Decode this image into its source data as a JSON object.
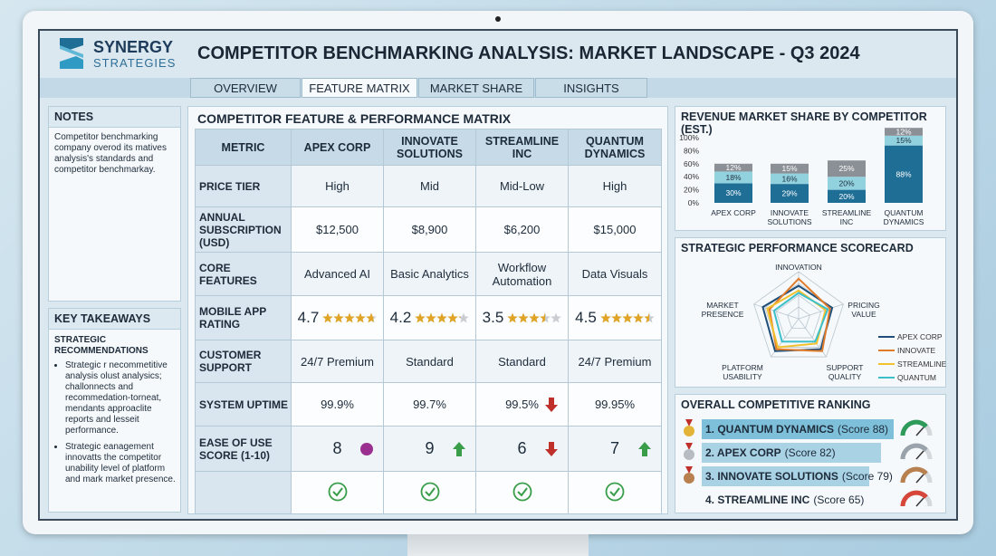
{
  "header": {
    "logo_line1": "SYNERGY",
    "logo_line2": "STRATEGIES",
    "title": "COMPETITOR BENCHMARKING ANALYSIS: MARKET LANDSCAPE - Q3 2024"
  },
  "tabs": [
    "OVERVIEW",
    "FEATURE MATRIX",
    "MARKET SHARE",
    "INSIGHTS"
  ],
  "active_tab": 1,
  "notes": {
    "title": "NOTES",
    "text": "Competitor benchmarking company overod its matives analysis's standards and competitor benchmarkay."
  },
  "key_takeaways": {
    "title": "KEY TAKEAWAYS",
    "subtitle": "STRATEGIC RECOMMENDATIONS",
    "bullets": [
      "Strategic r necommetitive analysis olust analysics; challonnects and recommedation-torneat, mendants approaclite reports and lesseit performance.",
      "Strategic eanagement innovatts the competitor unability level of platform and mark market presence."
    ]
  },
  "matrix": {
    "title": "COMPETITOR FEATURE & PERFORMANCE MATRIX",
    "header": [
      "METRIC",
      "APEX CORP",
      "INNOVATE SOLUTIONS",
      "STREAMLINE INC",
      "QUANTUM DYNAMICS"
    ],
    "rows": [
      [
        "PRICE TIER",
        "High",
        "Mid",
        "Mid-Low",
        "High"
      ],
      [
        "ANNUAL SUBSCRIPTION (USD)",
        "$12,500",
        "$8,900",
        "$6,200",
        "$15,000"
      ],
      [
        "CORE FEATURES",
        "Advanced AI",
        "Basic Analytics",
        "Workflow Automation",
        "Data Visuals"
      ],
      [
        "MOBILE APP RATING",
        4.7,
        4.2,
        3.5,
        4.5
      ],
      [
        "CUSTOMER SUPPORT",
        "24/7 Premium",
        "Standard",
        "Standard",
        "24/7 Premium"
      ],
      [
        "SYSTEM UPTIME",
        "99.9%",
        "99.7%",
        "99.5%",
        "99.95%"
      ],
      [
        "EASE OF USE SCORE (1-10)",
        "8",
        "9",
        "6",
        "7"
      ]
    ]
  },
  "revenue_chart": {
    "type": "bar",
    "title": "REVENUE MARKET SHARE BY COMPETITOR (EST.)",
    "categories": [
      "APEX CORP",
      "INNOVATE SOLUTIONS",
      "STREAMLINE INC",
      "QUANTUM DYNAMICS"
    ],
    "series": [
      {
        "color": "#1f6e96",
        "values": [
          30,
          29,
          20,
          88
        ],
        "value_labels": [
          "30%",
          "29%",
          "20%",
          "88%"
        ]
      },
      {
        "color": "#92d2df",
        "values": [
          18,
          16,
          20,
          15
        ],
        "value_labels": [
          "18%",
          "16%",
          "20%",
          "15%"
        ]
      },
      {
        "color": "#8b9097",
        "values": [
          12,
          15,
          25,
          12
        ],
        "value_labels": [
          "12%",
          "15%",
          "25%",
          "12%"
        ]
      }
    ],
    "ylim": [
      0,
      120
    ],
    "yticks": [
      {
        "value": 0,
        "label": "0%"
      },
      {
        "value": 20,
        "label": "20%"
      },
      {
        "value": 40,
        "label": "40%"
      },
      {
        "value": 60,
        "label": "60%"
      },
      {
        "value": 80,
        "label": "80%"
      },
      {
        "value": 100,
        "label": "100%"
      }
    ]
  },
  "scorecard": {
    "type": "radar",
    "title": "STRATEGIC PERFORMANCE SCORECARD",
    "axes": [
      "INNOVATION",
      "PRICING VALUE",
      "SUPPORT QUALITY",
      "PLATFORM USABILITY",
      "MARKET PRESENCE"
    ],
    "rlim": [
      0,
      100
    ],
    "series": [
      {
        "name": "APEX CORP",
        "color": "#1f4e79",
        "values": [
          70,
          75,
          80,
          85,
          80
        ]
      },
      {
        "name": "INNOVATE",
        "color": "#e07b2a",
        "values": [
          85,
          70,
          85,
          80,
          65
        ]
      },
      {
        "name": "STREAMLINE",
        "color": "#f2c12e",
        "values": [
          60,
          60,
          65,
          75,
          70
        ]
      },
      {
        "name": "QUANTUM",
        "color": "#3bbfc9",
        "values": [
          55,
          65,
          60,
          60,
          55
        ]
      }
    ]
  },
  "ranking": {
    "title": "OVERALL COMPETITIVE RANKING",
    "items": [
      {
        "name": "1. QUANTUM DYNAMICS",
        "score": "(Score 88)"
      },
      {
        "name": "2. APEX CORP",
        "score": "(Score 82)"
      },
      {
        "name": "3. INNOVATE SOLUTIONS",
        "score": "(Score 79)"
      },
      {
        "name": "4. STREAMLINE INC",
        "score": "(Score 65)"
      }
    ]
  }
}
